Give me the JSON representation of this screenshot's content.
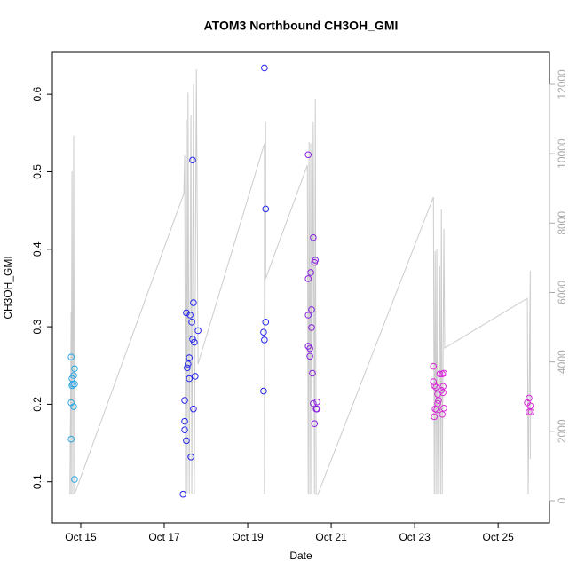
{
  "chart_data": {
    "type": "scatter",
    "title": "ATOM3 Northbound CH3OH_GMI",
    "x_label": "Date",
    "y_label": "CH3OH_GMI",
    "xlim": [
      14.32,
      26.23
    ],
    "xticks": [
      {
        "value": 15,
        "label": "Oct 15"
      },
      {
        "value": 17,
        "label": "Oct 17"
      },
      {
        "value": 19,
        "label": "Oct 19"
      },
      {
        "value": 21,
        "label": "Oct 21"
      },
      {
        "value": 23,
        "label": "Oct 23"
      },
      {
        "value": 25,
        "label": "Oct 25"
      }
    ],
    "ylim": [
      0.047,
      0.654
    ],
    "yticks": [
      0.1,
      0.2,
      0.3,
      0.4,
      0.5,
      0.6
    ],
    "y2lim": [
      -640,
      12920
    ],
    "y2ticks": [
      0,
      2000,
      4000,
      6000,
      8000,
      10000,
      12000
    ],
    "series": [
      {
        "color": "#2aa6e6",
        "x": [
          14.79,
          14.81,
          14.79,
          14.77,
          14.85,
          14.83,
          14.85,
          14.77,
          14.83,
          14.77,
          14.85
        ],
        "values": [
          0.233,
          0.226,
          0.224,
          0.261,
          0.246,
          0.237,
          0.226,
          0.202,
          0.197,
          0.155,
          0.103
        ]
      },
      {
        "color": "#2626ec",
        "x": [
          17.45,
          17.49,
          17.49,
          17.49,
          17.53,
          17.53,
          17.55,
          17.57,
          17.6,
          17.6,
          17.64,
          17.62,
          17.66,
          17.68,
          17.68,
          17.7,
          17.72,
          17.7,
          17.74,
          17.81,
          19.4,
          19.43,
          19.43,
          19.38,
          19.4,
          19.38
        ],
        "values": [
          0.084,
          0.178,
          0.167,
          0.205,
          0.153,
          0.318,
          0.247,
          0.252,
          0.26,
          0.233,
          0.132,
          0.315,
          0.306,
          0.515,
          0.284,
          0.331,
          0.28,
          0.194,
          0.236,
          0.295,
          0.634,
          0.452,
          0.306,
          0.293,
          0.283,
          0.217
        ]
      },
      {
        "color": "#8a22e0",
        "x": [
          20.45,
          20.45,
          20.45,
          20.45,
          20.49,
          20.49,
          20.51,
          20.53,
          20.53,
          20.55,
          20.57,
          20.6,
          20.62,
          20.57,
          20.6,
          20.64,
          20.66,
          20.66
        ],
        "values": [
          0.522,
          0.362,
          0.315,
          0.275,
          0.272,
          0.262,
          0.37,
          0.322,
          0.299,
          0.24,
          0.415,
          0.383,
          0.386,
          0.201,
          0.175,
          0.194,
          0.203,
          0.194
        ]
      },
      {
        "color": "#d82ad8",
        "x": [
          23.45,
          23.45,
          23.47,
          23.49,
          23.47,
          23.51,
          23.53,
          23.55,
          23.55,
          23.57,
          23.6,
          23.64,
          23.66,
          23.68,
          23.7,
          23.66,
          23.68,
          23.7,
          25.7,
          25.74,
          25.77,
          25.74,
          25.79
        ],
        "values": [
          0.249,
          0.229,
          0.224,
          0.194,
          0.184,
          0.222,
          0.193,
          0.213,
          0.201,
          0.205,
          0.239,
          0.218,
          0.239,
          0.223,
          0.24,
          0.187,
          0.215,
          0.195,
          0.202,
          0.208,
          0.198,
          0.19,
          0.19
        ]
      },
      {
        "color": "#cccccc",
        "axis": "y2",
        "x": [
          14.74,
          14.77,
          14.77,
          14.79,
          14.81,
          14.83,
          14.85,
          17.47,
          17.49,
          17.51,
          17.53,
          17.55,
          17.57,
          17.6,
          17.64,
          17.66,
          17.7,
          17.72,
          17.77,
          17.81,
          19.4,
          19.4,
          19.43,
          19.43,
          20.43,
          20.45,
          20.47,
          20.49,
          20.51,
          20.53,
          20.57,
          20.6,
          20.62,
          20.64,
          20.68,
          23.45,
          23.47,
          23.49,
          23.51,
          23.53,
          23.55,
          23.6,
          23.62,
          23.64,
          23.66,
          23.7,
          23.72,
          25.7,
          25.72,
          25.77,
          25.77
        ],
        "values": [
          180,
          5420,
          180,
          9490,
          180,
          10520,
          180,
          8850,
          9950,
          180,
          10980,
          180,
          11760,
          180,
          11110,
          180,
          12000,
          180,
          12430,
          3940,
          10290,
          180,
          10930,
          6400,
          9670,
          180,
          10340,
          180,
          10300,
          180,
          10930,
          180,
          11570,
          180,
          180,
          8750,
          180,
          7190,
          180,
          7270,
          180,
          6760,
          180,
          8390,
          180,
          7830,
          4400,
          5830,
          180,
          6630,
          1200
        ]
      }
    ]
  }
}
